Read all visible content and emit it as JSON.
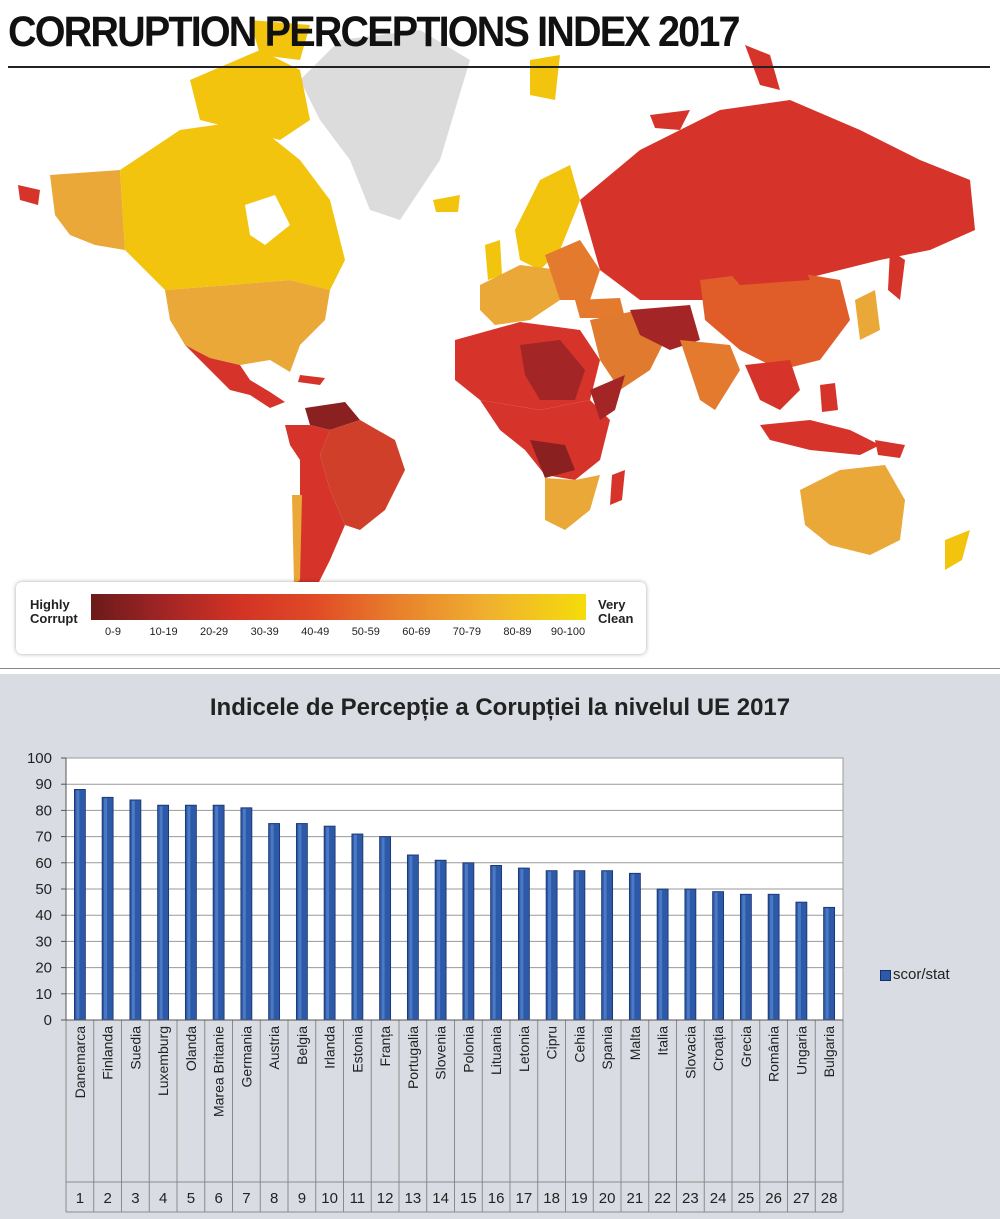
{
  "map": {
    "title": "CORRUPTION PERCEPTIONS INDEX 2017",
    "legend": {
      "low_label": "Highly\nCorrupt",
      "high_label": "Very\nClean",
      "ranges": [
        "0-9",
        "10-19",
        "20-29",
        "30-39",
        "40-49",
        "50-59",
        "60-69",
        "70-79",
        "80-89",
        "90-100"
      ],
      "colors": [
        "#6b1a1a",
        "#a32525",
        "#d23325",
        "#e04a26",
        "#e8802c",
        "#f0b030",
        "#f5dc0a"
      ]
    }
  },
  "chart_data": {
    "type": "bar",
    "title": "Indicele de Percepție a Corupției la nivelul UE 2017",
    "categories": [
      "Danemarca",
      "Finlanda",
      "Suedia",
      "Luxemburg",
      "Olanda",
      "Marea Britanie",
      "Germania",
      "Austria",
      "Belgia",
      "Irlanda",
      "Estonia",
      "Franța",
      "Portugalia",
      "Slovenia",
      "Polonia",
      "Lituania",
      "Letonia",
      "Cipru",
      "Cehia",
      "Spania",
      "Malta",
      "Italia",
      "Slovacia",
      "Croația",
      "Grecia",
      "România",
      "Ungaria",
      "Bulgaria"
    ],
    "ranks": [
      "1",
      "2",
      "3",
      "4",
      "5",
      "6",
      "7",
      "8",
      "9",
      "10",
      "11",
      "12",
      "13",
      "14",
      "15",
      "16",
      "17",
      "18",
      "19",
      "20",
      "21",
      "22",
      "23",
      "24",
      "25",
      "26",
      "27",
      "28"
    ],
    "series": [
      {
        "name": "scor/stat",
        "values": [
          88,
          85,
          84,
          82,
          82,
          82,
          81,
          75,
          75,
          74,
          71,
          70,
          63,
          61,
          60,
          59,
          58,
          57,
          57,
          57,
          56,
          50,
          50,
          49,
          48,
          48,
          45,
          43
        ]
      }
    ],
    "ylim": [
      0,
      100
    ],
    "yticks": [
      0,
      10,
      20,
      30,
      40,
      50,
      60,
      70,
      80,
      90,
      100
    ],
    "grid": true,
    "legend_position": "right",
    "bar_color": "#2d5aa8"
  }
}
